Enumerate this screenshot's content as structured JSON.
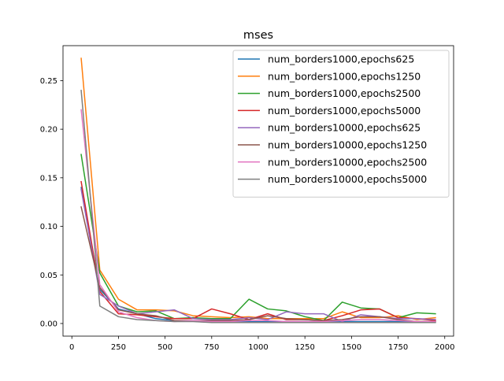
{
  "chart_data": {
    "type": "line",
    "title": "mses",
    "xlabel": "",
    "ylabel": "",
    "xlim": [
      -47.5,
      2047.5
    ],
    "ylim": [
      -0.013,
      0.286
    ],
    "xticks": [
      0,
      250,
      500,
      750,
      1000,
      1250,
      1500,
      1750,
      2000
    ],
    "xtick_labels": [
      "0",
      "250",
      "500",
      "750",
      "1000",
      "1250",
      "1500",
      "1750",
      "2000"
    ],
    "yticks": [
      0.0,
      0.05,
      0.1,
      0.15,
      0.2,
      0.25
    ],
    "ytick_labels": [
      "0.00",
      "0.05",
      "0.10",
      "0.15",
      "0.20",
      "0.25"
    ],
    "grid": false,
    "legend_position": "top-right",
    "x": [
      50,
      150,
      250,
      350,
      450,
      550,
      650,
      750,
      850,
      950,
      1050,
      1150,
      1250,
      1350,
      1450,
      1550,
      1650,
      1750,
      1850,
      1950
    ],
    "series": [
      {
        "name": "num_borders1000,epochs625",
        "color": "#1f77b4",
        "values": [
          0.14,
          0.035,
          0.015,
          0.01,
          0.005,
          0.003,
          0.003,
          0.002,
          0.002,
          0.002,
          0.002,
          0.002,
          0.002,
          0.002,
          0.002,
          0.002,
          0.002,
          0.002,
          0.002,
          0.002
        ]
      },
      {
        "name": "num_borders1000,epochs1250",
        "color": "#ff7f0e",
        "values": [
          0.273,
          0.055,
          0.025,
          0.014,
          0.014,
          0.013,
          0.008,
          0.007,
          0.006,
          0.007,
          0.005,
          0.005,
          0.005,
          0.005,
          0.012,
          0.006,
          0.006,
          0.008,
          0.004,
          0.006
        ]
      },
      {
        "name": "num_borders1000,epochs2500",
        "color": "#2ca02c",
        "values": [
          0.174,
          0.052,
          0.018,
          0.012,
          0.013,
          0.005,
          0.006,
          0.005,
          0.005,
          0.025,
          0.015,
          0.013,
          0.007,
          0.003,
          0.022,
          0.016,
          0.015,
          0.006,
          0.011,
          0.01
        ]
      },
      {
        "name": "num_borders1000,epochs5000",
        "color": "#d62728",
        "values": [
          0.146,
          0.033,
          0.01,
          0.009,
          0.007,
          0.005,
          0.005,
          0.015,
          0.01,
          0.004,
          0.01,
          0.004,
          0.004,
          0.003,
          0.008,
          0.014,
          0.015,
          0.006,
          0.005,
          0.003
        ]
      },
      {
        "name": "num_borders10000,epochs625",
        "color": "#9467bd",
        "values": [
          0.138,
          0.03,
          0.018,
          0.01,
          0.012,
          0.014,
          0.005,
          0.004,
          0.004,
          0.006,
          0.004,
          0.012,
          0.01,
          0.01,
          0.002,
          0.009,
          0.007,
          0.005,
          0.005,
          0.004
        ]
      },
      {
        "name": "num_borders10000,epochs1250",
        "color": "#8c564b",
        "values": [
          0.12,
          0.037,
          0.014,
          0.01,
          0.008,
          0.003,
          0.003,
          0.003,
          0.003,
          0.004,
          0.008,
          0.005,
          0.004,
          0.003,
          0.004,
          0.007,
          0.007,
          0.004,
          0.002,
          0.002
        ]
      },
      {
        "name": "num_borders10000,epochs2500",
        "color": "#e377c2",
        "values": [
          0.22,
          0.04,
          0.012,
          0.006,
          0.003,
          0.002,
          0.003,
          0.002,
          0.002,
          0.003,
          0.003,
          0.002,
          0.002,
          0.002,
          0.003,
          0.004,
          0.004,
          0.003,
          0.002,
          0.002
        ]
      },
      {
        "name": "num_borders10000,epochs5000",
        "color": "#7f7f7f",
        "values": [
          0.24,
          0.018,
          0.007,
          0.004,
          0.003,
          0.002,
          0.002,
          0.001,
          0.001,
          0.001,
          0.001,
          0.001,
          0.001,
          0.001,
          0.001,
          0.001,
          0.001,
          0.001,
          0.001,
          0.001
        ]
      }
    ]
  }
}
